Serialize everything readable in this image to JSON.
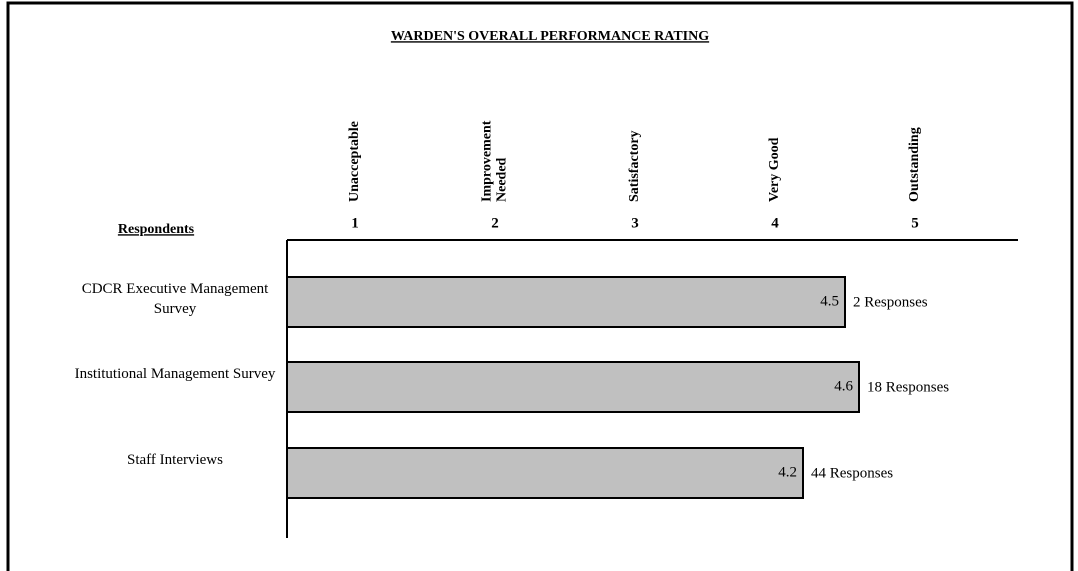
{
  "chart_data": {
    "type": "barh",
    "title": "WARDEN'S OVERALL PERFORMANCE RATING",
    "y_label": "Respondents",
    "categories": [
      "CDCR Executive Management Survey",
      "Institutional Management Survey",
      "Staff Interviews"
    ],
    "values": [
      4.5,
      4.6,
      4.2
    ],
    "response_labels": [
      "2  Responses",
      "18 Responses",
      "44  Responses"
    ],
    "color": "#c0c0c0",
    "xlim": [
      0.5,
      5.7
    ],
    "xticks": [
      1,
      2,
      3,
      4,
      5
    ],
    "rating_labels": [
      [
        "Unacceptable"
      ],
      [
        "Improvement",
        "Needed"
      ],
      [
        "Satisfactory"
      ],
      [
        "Very Good"
      ],
      [
        "Outstanding"
      ]
    ]
  }
}
